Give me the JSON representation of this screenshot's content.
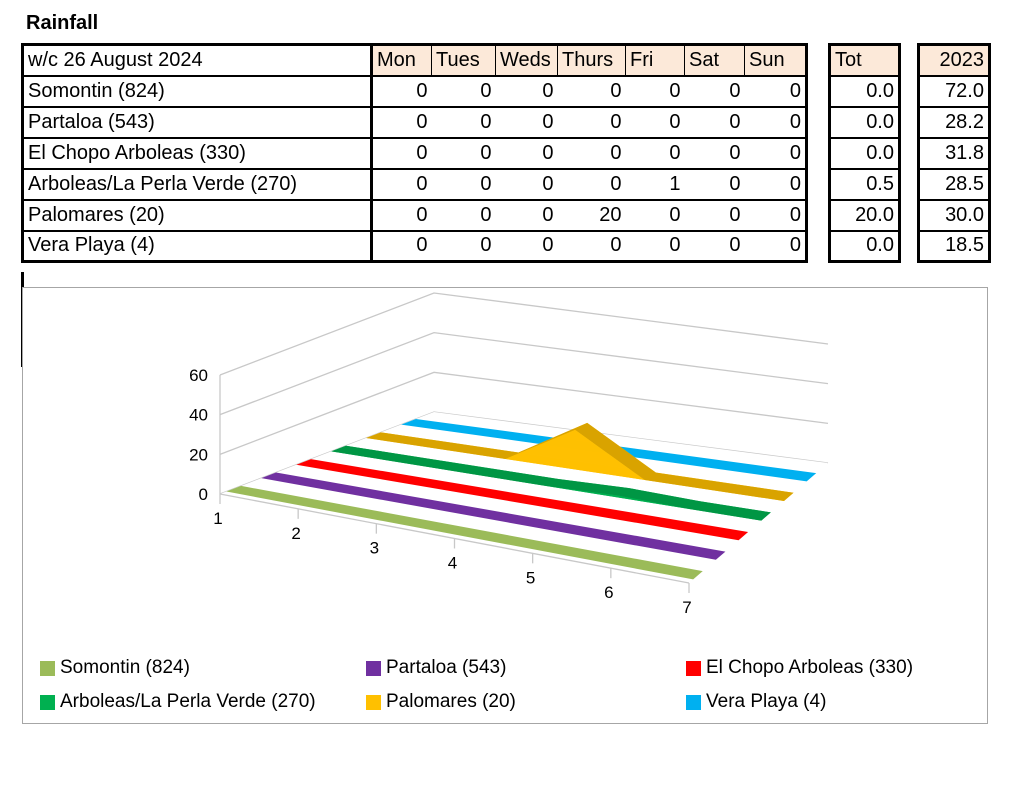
{
  "title": "Rainfall",
  "table": {
    "week_label": "w/c  26 August 2024",
    "days": [
      "Mon",
      "Tues",
      "Weds",
      "Thurs",
      "Fri",
      "Sat",
      "Sun"
    ],
    "tot_label": "Tot",
    "year_label": "2023",
    "rows": [
      {
        "station": "Somontin (824)",
        "values": [
          "0",
          "0",
          "0",
          "0",
          "0",
          "0",
          "0"
        ],
        "tot": "0.0",
        "y2023": "72.0"
      },
      {
        "station": "Partaloa (543)",
        "values": [
          "0",
          "0",
          "0",
          "0",
          "0",
          "0",
          "0"
        ],
        "tot": "0.0",
        "y2023": "28.2"
      },
      {
        "station": "El Chopo Arboleas (330)",
        "values": [
          "0",
          "0",
          "0",
          "0",
          "0",
          "0",
          "0"
        ],
        "tot": "0.0",
        "y2023": "31.8"
      },
      {
        "station": "Arboleas/La Perla Verde (270)",
        "values": [
          "0",
          "0",
          "0",
          "0",
          "1",
          "0",
          "0"
        ],
        "tot": "0.5",
        "y2023": "28.5"
      },
      {
        "station": "Palomares (20)",
        "values": [
          "0",
          "0",
          "0",
          "20",
          "0",
          "0",
          "0"
        ],
        "tot": "20.0",
        "y2023": "30.0"
      },
      {
        "station": "Vera Playa (4)",
        "values": [
          "0",
          "0",
          "0",
          "0",
          "0",
          "0",
          "0"
        ],
        "tot": "0.0",
        "y2023": "18.5"
      }
    ]
  },
  "chart_data": {
    "type": "area",
    "title": "",
    "xlabel": "",
    "ylabel": "",
    "categories": [
      "1",
      "2",
      "3",
      "4",
      "5",
      "6",
      "7"
    ],
    "ylim": [
      0,
      60
    ],
    "yticks": [
      "0",
      "20",
      "40",
      "60"
    ],
    "grid": true,
    "legend_position": "bottom",
    "series": [
      {
        "name": "Somontin (824)",
        "values": [
          0,
          0,
          0,
          0,
          0,
          0,
          0
        ],
        "color": "#9bbb59"
      },
      {
        "name": "Partaloa (543)",
        "values": [
          0,
          0,
          0,
          0,
          0,
          0,
          0
        ],
        "color": "#7030a0"
      },
      {
        "name": "El Chopo Arboleas (330)",
        "values": [
          0,
          0,
          0,
          0,
          0,
          0,
          0
        ],
        "color": "#ff0000"
      },
      {
        "name": "Arboleas/La Perla Verde (270)",
        "values": [
          0,
          0,
          0,
          0,
          1,
          0,
          0
        ],
        "color": "#00b050"
      },
      {
        "name": "Palomares (20)",
        "values": [
          0,
          0,
          0,
          20,
          0,
          0,
          0
        ],
        "color": "#ffc000"
      },
      {
        "name": "Vera Playa (4)",
        "values": [
          0,
          0,
          0,
          0,
          0,
          0,
          0
        ],
        "color": "#00b0f0"
      }
    ]
  }
}
